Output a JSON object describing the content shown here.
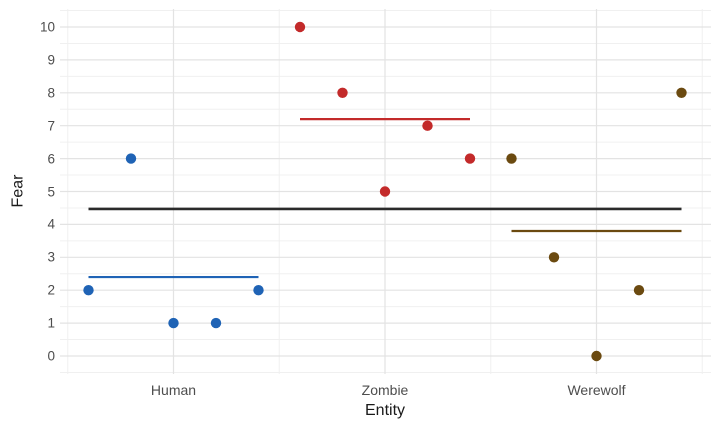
{
  "chart_data": {
    "type": "scatter",
    "title": "",
    "xlabel": "Entity",
    "ylabel": "Fear",
    "categories": [
      "Human",
      "Zombie",
      "Werewolf"
    ],
    "yticks": [
      0,
      1,
      2,
      3,
      4,
      5,
      6,
      7,
      8,
      9,
      10
    ],
    "ylim": [
      -0.5,
      10.5
    ],
    "grid": true,
    "legend": "none",
    "series": [
      {
        "name": "Human",
        "color": "#1f63b5",
        "points": [
          2,
          6,
          1,
          1,
          2
        ],
        "mean": 2.4
      },
      {
        "name": "Zombie",
        "color": "#c32a2a",
        "points": [
          10,
          8,
          5,
          7,
          6
        ],
        "mean": 7.2
      },
      {
        "name": "Werewolf",
        "color": "#6b4a10",
        "points": [
          6,
          3,
          0,
          2,
          8
        ],
        "mean": 3.8
      }
    ],
    "grand_mean": 4.47,
    "grand_mean_color": "#2b2b2b",
    "colors": {
      "background": "#ffffff",
      "major_grid": "#e3e3e3",
      "minor_grid": "#f0f0f0",
      "tick_label": "#4d4d4d",
      "axis_title": "#1a1a1a"
    }
  }
}
